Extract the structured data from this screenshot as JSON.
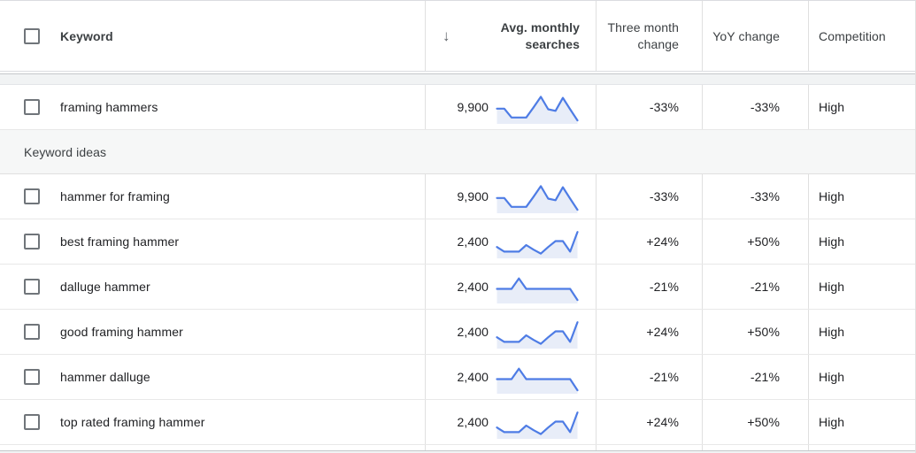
{
  "colors": {
    "sparkline_line": "#4e7ce5",
    "sparkline_fill": "#e8edf8"
  },
  "header": {
    "keyword_label": "Keyword",
    "sort_arrow": "↓",
    "avg_monthly_searches_label": "Avg. monthly searches",
    "three_month_change_label": "Three month change",
    "yoy_change_label": "YoY change",
    "competition_label": "Competition"
  },
  "trends": {
    "down33": [
      0.52,
      0.52,
      0.25,
      0.25,
      0.25,
      0.56,
      0.88,
      0.5,
      0.45,
      0.85,
      0.5,
      0.16
    ],
    "up24": [
      0.4,
      0.26,
      0.26,
      0.26,
      0.46,
      0.32,
      0.2,
      0.4,
      0.58,
      0.58,
      0.26,
      0.86
    ],
    "spike21": [
      0.5,
      0.5,
      0.5,
      0.82,
      0.5,
      0.5,
      0.5,
      0.5,
      0.5,
      0.5,
      0.5,
      0.16
    ]
  },
  "table": {
    "items": [
      {
        "type": "row",
        "keyword": "framing hammers",
        "avg_monthly_searches": "9,900",
        "trend": "down33",
        "three_month_change": "-33%",
        "yoy_change": "-33%",
        "competition": "High"
      },
      {
        "type": "section",
        "label": "Keyword ideas"
      },
      {
        "type": "row",
        "keyword": "hammer for framing",
        "avg_monthly_searches": "9,900",
        "trend": "down33",
        "three_month_change": "-33%",
        "yoy_change": "-33%",
        "competition": "High"
      },
      {
        "type": "row",
        "keyword": "best framing hammer",
        "avg_monthly_searches": "2,400",
        "trend": "up24",
        "three_month_change": "+24%",
        "yoy_change": "+50%",
        "competition": "High"
      },
      {
        "type": "row",
        "keyword": "dalluge hammer",
        "avg_monthly_searches": "2,400",
        "trend": "spike21",
        "three_month_change": "-21%",
        "yoy_change": "-21%",
        "competition": "High"
      },
      {
        "type": "row",
        "keyword": "good framing hammer",
        "avg_monthly_searches": "2,400",
        "trend": "up24",
        "three_month_change": "+24%",
        "yoy_change": "+50%",
        "competition": "High"
      },
      {
        "type": "row",
        "keyword": "hammer dalluge",
        "avg_monthly_searches": "2,400",
        "trend": "spike21",
        "three_month_change": "-21%",
        "yoy_change": "-21%",
        "competition": "High"
      },
      {
        "type": "row",
        "keyword": "top rated framing hammer",
        "avg_monthly_searches": "2,400",
        "trend": "up24",
        "three_month_change": "+24%",
        "yoy_change": "+50%",
        "competition": "High"
      }
    ]
  }
}
